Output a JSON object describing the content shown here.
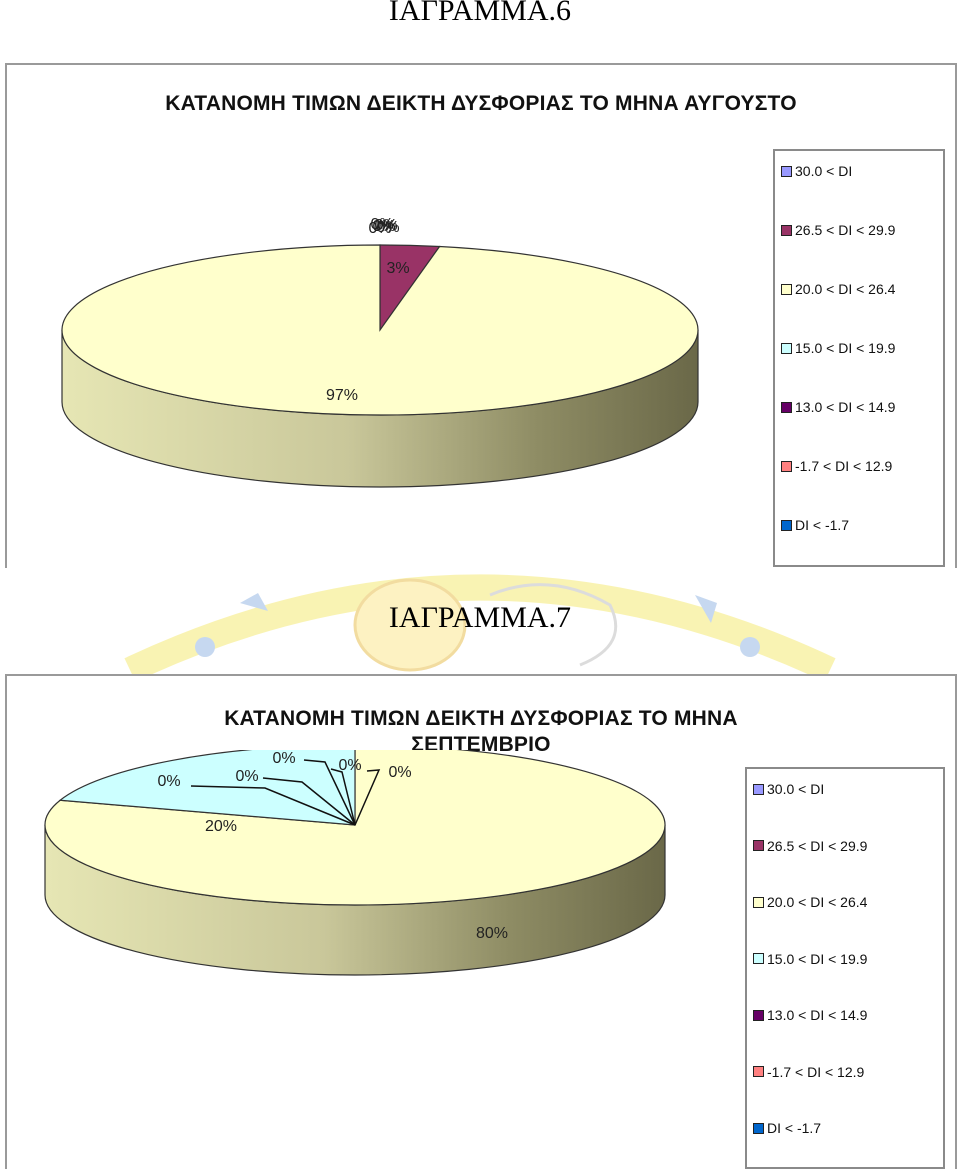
{
  "headings": {
    "diagram6": "ΙΑΓΡΑΜΜΑ.6",
    "diagram7": "ΙΑΓΡΑΜΜΑ.7"
  },
  "legend_labels": [
    "30.0 < DI",
    "26.5 < DI < 29.9",
    "20.0 < DI < 26.4",
    "15.0 < DI < 19.9",
    "13.0 < DI < 14.9",
    "-1.7 < DI < 12.9",
    "DI < -1.7"
  ],
  "legend_colors": [
    "#9999ff",
    "#993366",
    "#ffffcc",
    "#ccffff",
    "#660066",
    "#ff8080",
    "#0066cc"
  ],
  "chart_data": [
    {
      "type": "pie",
      "title": "ΚΑΤΑΝΟΜΗ ΤΙΜΩΝ ΔΕΙΚΤΗ ΔΥΣΦΟΡΙΑΣ ΤΟ ΜΗΝΑ ΑΥΓΟΥΣΤΟ",
      "title_lines": [
        "ΚΑΤΑΝΟΜΗ ΤΙΜΩΝ ΔΕΙΚΤΗ ΔΥΣΦΟΡΙΑΣ ΤΟ ΜΗΝΑ ΑΥΓΟΥΣΤΟ"
      ],
      "categories": [
        "30.0 < DI",
        "26.5 < DI < 29.9",
        "20.0 < DI < 26.4",
        "15.0 < DI < 19.9",
        "13.0 < DI < 14.9",
        "-1.7 < DI < 12.9",
        "DI < -1.7"
      ],
      "values": [
        0,
        3,
        97,
        0,
        0,
        0,
        0
      ],
      "data_labels": [
        "0%",
        "3%",
        "97%",
        "0%",
        "0%",
        "0%",
        "0%"
      ],
      "legend": "right",
      "style": "3d"
    },
    {
      "type": "pie",
      "title": "ΚΑΤΑΝΟΜΗ ΤΙΜΩΝ ΔΕΙΚΤΗ ΔΥΣΦΟΡΙΑΣ ΤΟ ΜΗΝΑ ΣΕΠΤΕΜΒΡΙΟ",
      "title_lines": [
        "ΚΑΤΑΝΟΜΗ ΤΙΜΩΝ ΔΕΙΚΤΗ ΔΥΣΦΟΡΙΑΣ ΤΟ ΜΗΝΑ",
        "ΣΕΠΤΕΜΒΡΙΟ"
      ],
      "categories": [
        "30.0 < DI",
        "26.5 < DI < 29.9",
        "20.0 < DI < 26.4",
        "15.0 < DI < 19.9",
        "13.0 < DI < 14.9",
        "-1.7 < DI < 12.9",
        "DI < -1.7"
      ],
      "values": [
        0,
        0,
        80,
        20,
        0,
        0,
        0
      ],
      "data_labels": [
        "0%",
        "0%",
        "80%",
        "20%",
        "0%",
        "0%",
        "0%"
      ],
      "legend": "right",
      "style": "3d"
    }
  ]
}
